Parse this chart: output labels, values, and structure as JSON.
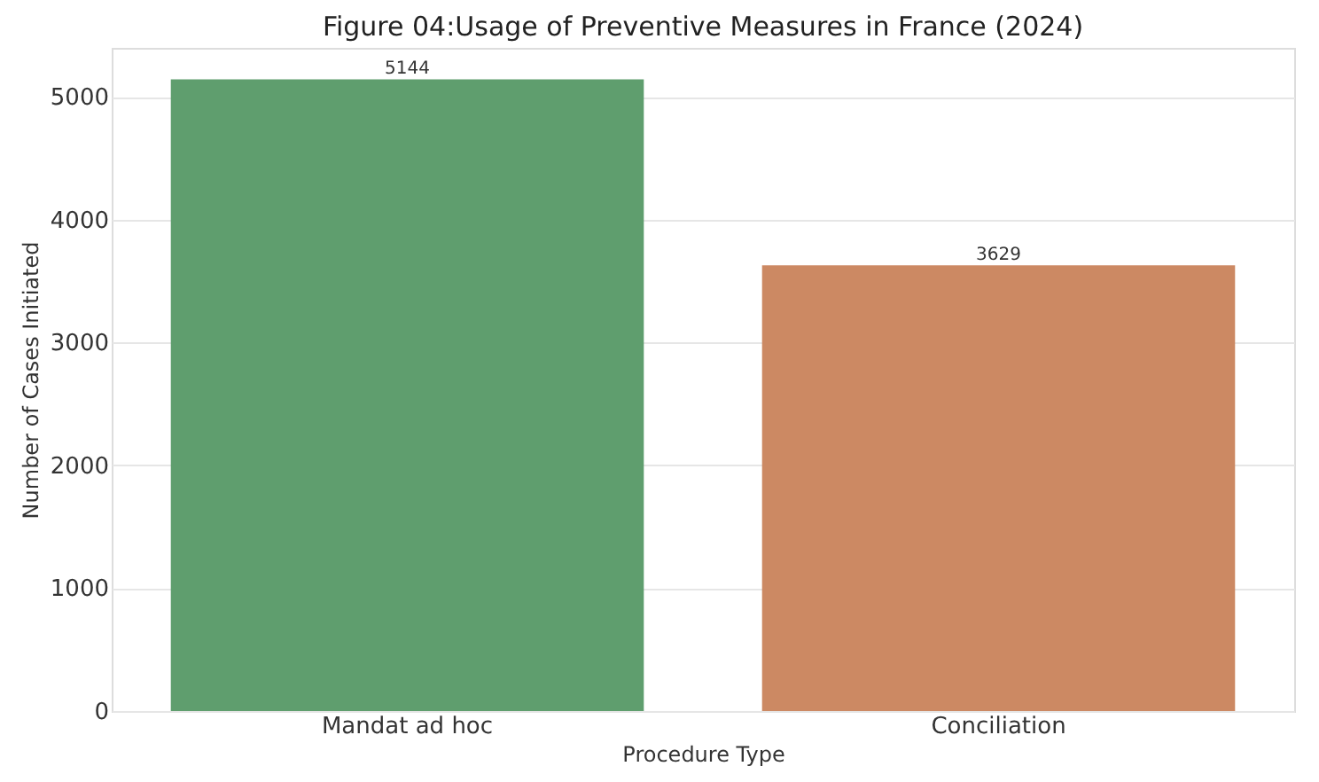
{
  "chart_data": {
    "type": "bar",
    "title": "Figure 04:Usage of Preventive Measures in France (2024)",
    "xlabel": "Procedure Type",
    "ylabel": "Number of Cases Initiated",
    "categories": [
      "Mandat ad hoc",
      "Conciliation"
    ],
    "values": [
      5144,
      3629
    ],
    "colors": [
      "#5f9e6e",
      "#cc8963"
    ],
    "ylim": [
      0,
      5400
    ],
    "yticks": [
      0,
      1000,
      2000,
      3000,
      4000,
      5000
    ],
    "grid": "y",
    "data_labels": true
  }
}
